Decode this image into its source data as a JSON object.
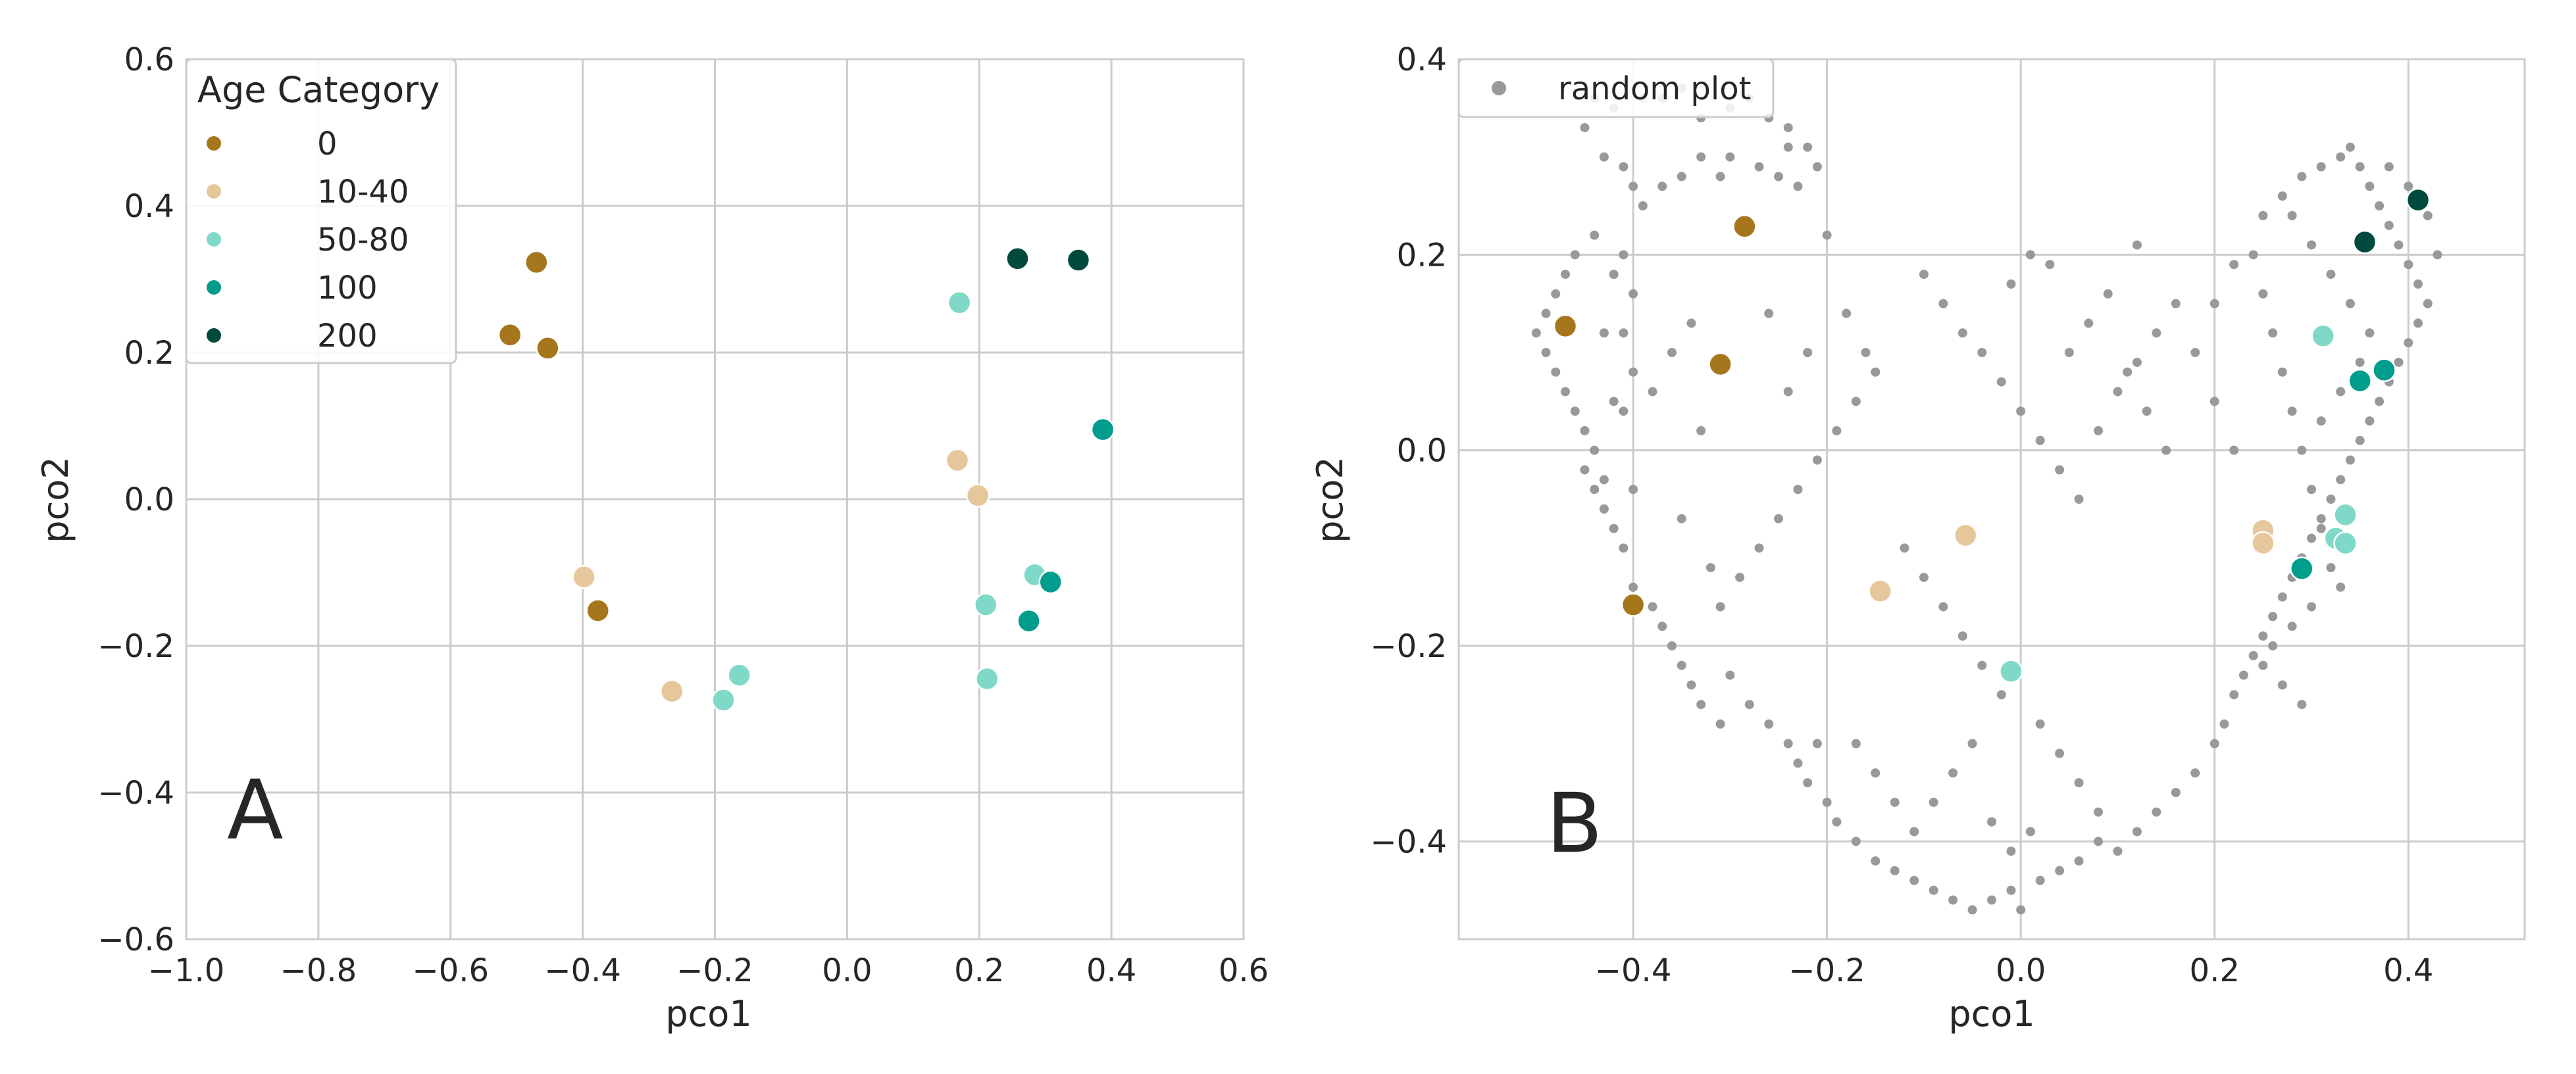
{
  "chart_data": [
    {
      "type": "scatter",
      "panel_label": "A",
      "xlabel": "pco1",
      "ylabel": "pco2",
      "xlim": [
        -1.0,
        0.6
      ],
      "ylim": [
        -0.6,
        0.6
      ],
      "xticks": [
        -1.0,
        -0.8,
        -0.6,
        -0.4,
        -0.2,
        0.0,
        0.2,
        0.4,
        0.6
      ],
      "xtick_labels": [
        "−1.0",
        "−0.8",
        "−0.6",
        "−0.4",
        "−0.2",
        "0.0",
        "0.2",
        "0.4",
        "0.6"
      ],
      "yticks": [
        -0.6,
        -0.4,
        -0.2,
        0.0,
        0.2,
        0.4,
        0.6
      ],
      "ytick_labels": [
        "−0.6",
        "−0.4",
        "−0.2",
        "0.0",
        "0.2",
        "0.4",
        "0.6"
      ],
      "grid": true,
      "legend": {
        "title": "Age Category",
        "location": "upper-left",
        "entries": [
          {
            "label": "0",
            "color": "#a6761d"
          },
          {
            "label": "10-40",
            "color": "#e6c79c"
          },
          {
            "label": "50-80",
            "color": "#80d9c8"
          },
          {
            "label": "100",
            "color": "#009c8c"
          },
          {
            "label": "200",
            "color": "#00493d"
          }
        ]
      },
      "series": [
        {
          "name": "0",
          "color": "#a6761d",
          "points": [
            [
              -0.47,
              0.323
            ],
            [
              -0.51,
              0.224
            ],
            [
              -0.453,
              0.206
            ],
            [
              -0.377,
              -0.152
            ]
          ]
        },
        {
          "name": "10-40",
          "color": "#e6c79c",
          "points": [
            [
              -0.398,
              -0.106
            ],
            [
              -0.265,
              -0.262
            ],
            [
              0.167,
              0.053
            ],
            [
              0.198,
              0.005
            ]
          ]
        },
        {
          "name": "50-80",
          "color": "#80d9c8",
          "points": [
            [
              -0.187,
              -0.274
            ],
            [
              -0.163,
              -0.24
            ],
            [
              0.17,
              0.268
            ],
            [
              0.21,
              -0.144
            ],
            [
              0.212,
              -0.245
            ],
            [
              0.284,
              -0.103
            ]
          ]
        },
        {
          "name": "100",
          "color": "#009c8c",
          "points": [
            [
              0.387,
              0.095
            ],
            [
              0.308,
              -0.113
            ],
            [
              0.275,
              -0.166
            ]
          ]
        },
        {
          "name": "200",
          "color": "#00493d",
          "points": [
            [
              0.258,
              0.328
            ],
            [
              0.35,
              0.326
            ]
          ]
        }
      ]
    },
    {
      "type": "scatter",
      "panel_label": "B",
      "xlabel": "pco1",
      "ylabel": "pco2",
      "xlim": [
        -0.58,
        0.52
      ],
      "ylim": [
        -0.5,
        0.4
      ],
      "xticks": [
        -0.4,
        -0.2,
        0.0,
        0.2,
        0.4
      ],
      "xtick_labels": [
        "−0.4",
        "−0.2",
        "0.0",
        "0.2",
        "0.4"
      ],
      "yticks": [
        -0.4,
        -0.2,
        0.0,
        0.2,
        0.4
      ],
      "ytick_labels": [
        "−0.4",
        "−0.2",
        "0.0",
        "0.2",
        "0.4"
      ],
      "grid": true,
      "legend": {
        "location": "upper-left",
        "entries": [
          {
            "label": "random plot",
            "color": "#999999"
          }
        ]
      },
      "series": [
        {
          "name": "0",
          "color": "#a6761d",
          "points": [
            [
              -0.285,
              0.229
            ],
            [
              -0.47,
              0.127
            ],
            [
              -0.31,
              0.088
            ],
            [
              -0.4,
              -0.158
            ]
          ]
        },
        {
          "name": "10-40",
          "color": "#e6c79c",
          "points": [
            [
              -0.145,
              -0.144
            ],
            [
              -0.057,
              -0.087
            ],
            [
              0.25,
              -0.082
            ],
            [
              0.25,
              -0.095
            ]
          ]
        },
        {
          "name": "50-80",
          "color": "#80d9c8",
          "points": [
            [
              -0.01,
              -0.226
            ],
            [
              0.312,
              0.117
            ],
            [
              0.335,
              -0.066
            ],
            [
              0.325,
              -0.09
            ],
            [
              0.335,
              -0.095
            ]
          ]
        },
        {
          "name": "100",
          "color": "#009c8c",
          "points": [
            [
              0.375,
              0.082
            ],
            [
              0.35,
              0.071
            ],
            [
              0.29,
              -0.121
            ]
          ]
        },
        {
          "name": "200",
          "color": "#00493d",
          "points": [
            [
              0.41,
              0.256
            ],
            [
              0.355,
              0.213
            ]
          ]
        }
      ],
      "background_points": {
        "name": "random plot",
        "color": "#999999",
        "points": [
          [
            -0.45,
            0.33
          ],
          [
            -0.44,
            0.36
          ],
          [
            -0.42,
            0.35
          ],
          [
            -0.39,
            0.36
          ],
          [
            -0.37,
            0.36
          ],
          [
            -0.35,
            0.37
          ],
          [
            -0.33,
            0.34
          ],
          [
            -0.3,
            0.35
          ],
          [
            -0.28,
            0.36
          ],
          [
            -0.26,
            0.34
          ],
          [
            -0.24,
            0.33
          ],
          [
            -0.22,
            0.31
          ],
          [
            -0.21,
            0.29
          ],
          [
            -0.43,
            0.3
          ],
          [
            -0.41,
            0.29
          ],
          [
            -0.4,
            0.27
          ],
          [
            -0.39,
            0.25
          ],
          [
            -0.37,
            0.27
          ],
          [
            -0.35,
            0.28
          ],
          [
            -0.33,
            0.3
          ],
          [
            -0.31,
            0.28
          ],
          [
            -0.3,
            0.3
          ],
          [
            -0.27,
            0.29
          ],
          [
            -0.25,
            0.28
          ],
          [
            -0.24,
            0.31
          ],
          [
            -0.23,
            0.27
          ],
          [
            -0.44,
            0.22
          ],
          [
            -0.46,
            0.2
          ],
          [
            -0.47,
            0.18
          ],
          [
            -0.48,
            0.16
          ],
          [
            -0.49,
            0.14
          ],
          [
            -0.5,
            0.12
          ],
          [
            -0.49,
            0.1
          ],
          [
            -0.48,
            0.08
          ],
          [
            -0.47,
            0.06
          ],
          [
            -0.46,
            0.04
          ],
          [
            -0.45,
            0.02
          ],
          [
            -0.44,
            0.0
          ],
          [
            -0.45,
            -0.02
          ],
          [
            -0.44,
            -0.04
          ],
          [
            -0.43,
            -0.06
          ],
          [
            -0.42,
            -0.08
          ],
          [
            -0.43,
            -0.03
          ],
          [
            -0.42,
            0.05
          ],
          [
            -0.43,
            0.12
          ],
          [
            -0.42,
            0.18
          ],
          [
            -0.41,
            0.2
          ],
          [
            -0.4,
            0.16
          ],
          [
            -0.41,
            0.12
          ],
          [
            -0.4,
            0.08
          ],
          [
            -0.41,
            0.04
          ],
          [
            -0.4,
            -0.04
          ],
          [
            -0.41,
            -0.1
          ],
          [
            -0.4,
            -0.14
          ],
          [
            -0.38,
            -0.16
          ],
          [
            -0.37,
            -0.18
          ],
          [
            -0.36,
            -0.2
          ],
          [
            -0.35,
            -0.22
          ],
          [
            -0.34,
            -0.24
          ],
          [
            -0.33,
            -0.26
          ],
          [
            -0.31,
            -0.28
          ],
          [
            -0.3,
            -0.23
          ],
          [
            -0.28,
            -0.26
          ],
          [
            -0.26,
            -0.28
          ],
          [
            -0.24,
            -0.3
          ],
          [
            -0.23,
            -0.32
          ],
          [
            -0.22,
            -0.34
          ],
          [
            -0.21,
            -0.3
          ],
          [
            -0.2,
            -0.36
          ],
          [
            -0.19,
            -0.38
          ],
          [
            -0.17,
            -0.4
          ],
          [
            -0.15,
            -0.42
          ],
          [
            -0.13,
            -0.43
          ],
          [
            -0.11,
            -0.44
          ],
          [
            -0.09,
            -0.45
          ],
          [
            -0.07,
            -0.46
          ],
          [
            -0.05,
            -0.47
          ],
          [
            -0.03,
            -0.46
          ],
          [
            -0.01,
            -0.45
          ],
          [
            0.0,
            -0.47
          ],
          [
            0.02,
            -0.44
          ],
          [
            0.04,
            -0.43
          ],
          [
            0.06,
            -0.42
          ],
          [
            0.08,
            -0.4
          ],
          [
            0.1,
            -0.41
          ],
          [
            0.12,
            -0.39
          ],
          [
            0.14,
            -0.37
          ],
          [
            0.16,
            -0.35
          ],
          [
            0.18,
            -0.33
          ],
          [
            0.2,
            -0.3
          ],
          [
            0.21,
            -0.28
          ],
          [
            0.22,
            -0.25
          ],
          [
            0.23,
            -0.23
          ],
          [
            0.24,
            -0.21
          ],
          [
            0.25,
            -0.19
          ],
          [
            0.26,
            -0.17
          ],
          [
            0.27,
            -0.15
          ],
          [
            0.28,
            -0.13
          ],
          [
            0.29,
            -0.11
          ],
          [
            0.3,
            -0.09
          ],
          [
            0.31,
            -0.07
          ],
          [
            0.32,
            -0.05
          ],
          [
            0.33,
            -0.03
          ],
          [
            0.34,
            -0.01
          ],
          [
            0.35,
            0.01
          ],
          [
            0.36,
            0.03
          ],
          [
            0.37,
            0.05
          ],
          [
            0.38,
            0.07
          ],
          [
            0.39,
            0.09
          ],
          [
            0.4,
            0.11
          ],
          [
            0.41,
            0.13
          ],
          [
            0.42,
            0.15
          ],
          [
            0.41,
            0.17
          ],
          [
            0.4,
            0.19
          ],
          [
            0.39,
            0.21
          ],
          [
            0.38,
            0.23
          ],
          [
            0.37,
            0.25
          ],
          [
            0.36,
            0.27
          ],
          [
            0.35,
            0.29
          ],
          [
            0.34,
            0.31
          ],
          [
            0.33,
            0.3
          ],
          [
            0.31,
            0.29
          ],
          [
            0.29,
            0.28
          ],
          [
            0.27,
            0.26
          ],
          [
            0.25,
            0.24
          ],
          [
            0.24,
            0.2
          ],
          [
            0.25,
            0.16
          ],
          [
            0.26,
            0.12
          ],
          [
            0.27,
            0.08
          ],
          [
            0.28,
            0.04
          ],
          [
            0.29,
            0.0
          ],
          [
            0.3,
            -0.04
          ],
          [
            0.31,
            -0.08
          ],
          [
            0.32,
            -0.12
          ],
          [
            0.33,
            -0.14
          ],
          [
            0.3,
            -0.16
          ],
          [
            0.28,
            -0.18
          ],
          [
            0.26,
            -0.2
          ],
          [
            0.25,
            -0.22
          ],
          [
            0.27,
            -0.24
          ],
          [
            0.29,
            -0.26
          ],
          [
            0.31,
            0.03
          ],
          [
            0.33,
            0.06
          ],
          [
            0.35,
            0.09
          ],
          [
            0.36,
            0.12
          ],
          [
            0.34,
            0.15
          ],
          [
            0.32,
            0.18
          ],
          [
            0.3,
            0.21
          ],
          [
            0.28,
            0.24
          ],
          [
            0.38,
            0.29
          ],
          [
            0.4,
            0.27
          ],
          [
            0.42,
            0.24
          ],
          [
            0.43,
            0.2
          ],
          [
            -0.1,
            0.18
          ],
          [
            -0.08,
            0.15
          ],
          [
            -0.06,
            0.12
          ],
          [
            -0.04,
            0.1
          ],
          [
            -0.02,
            0.07
          ],
          [
            0.0,
            0.04
          ],
          [
            0.02,
            0.01
          ],
          [
            0.04,
            -0.02
          ],
          [
            0.06,
            -0.05
          ],
          [
            0.08,
            0.02
          ],
          [
            0.1,
            0.06
          ],
          [
            0.12,
            0.09
          ],
          [
            0.14,
            0.12
          ],
          [
            0.16,
            0.15
          ],
          [
            0.18,
            0.1
          ],
          [
            0.2,
            0.05
          ],
          [
            0.22,
            0.0
          ],
          [
            0.05,
            0.1
          ],
          [
            0.07,
            0.13
          ],
          [
            0.09,
            0.16
          ],
          [
            0.11,
            0.08
          ],
          [
            0.13,
            0.04
          ],
          [
            0.15,
            0.0
          ],
          [
            -0.15,
            0.08
          ],
          [
            -0.17,
            0.05
          ],
          [
            -0.19,
            0.02
          ],
          [
            -0.21,
            -0.01
          ],
          [
            -0.23,
            -0.04
          ],
          [
            -0.25,
            -0.07
          ],
          [
            -0.27,
            -0.1
          ],
          [
            -0.29,
            -0.13
          ],
          [
            -0.31,
            -0.16
          ],
          [
            -0.12,
            -0.1
          ],
          [
            -0.1,
            -0.13
          ],
          [
            -0.08,
            -0.16
          ],
          [
            -0.06,
            -0.19
          ],
          [
            -0.04,
            -0.22
          ],
          [
            -0.02,
            -0.25
          ],
          [
            0.02,
            -0.28
          ],
          [
            0.04,
            -0.31
          ],
          [
            0.06,
            -0.34
          ],
          [
            0.08,
            -0.37
          ],
          [
            -0.05,
            -0.3
          ],
          [
            -0.07,
            -0.33
          ],
          [
            -0.09,
            -0.36
          ],
          [
            -0.11,
            -0.39
          ],
          [
            -0.13,
            -0.36
          ],
          [
            -0.15,
            -0.33
          ],
          [
            -0.17,
            -0.3
          ],
          [
            -0.03,
            -0.38
          ],
          [
            -0.01,
            -0.41
          ],
          [
            0.01,
            -0.39
          ],
          [
            -0.2,
            0.22
          ],
          [
            -0.18,
            0.14
          ],
          [
            -0.16,
            0.1
          ],
          [
            -0.22,
            0.1
          ],
          [
            -0.24,
            0.06
          ],
          [
            -0.26,
            0.14
          ],
          [
            -0.34,
            0.13
          ],
          [
            -0.36,
            0.1
          ],
          [
            -0.38,
            0.06
          ],
          [
            -0.33,
            0.02
          ],
          [
            -0.35,
            -0.07
          ],
          [
            -0.32,
            -0.12
          ],
          [
            0.22,
            0.19
          ],
          [
            0.2,
            0.15
          ],
          [
            0.12,
            0.21
          ],
          [
            0.03,
            0.19
          ],
          [
            0.01,
            0.2
          ],
          [
            -0.01,
            0.17
          ]
        ]
      }
    }
  ]
}
